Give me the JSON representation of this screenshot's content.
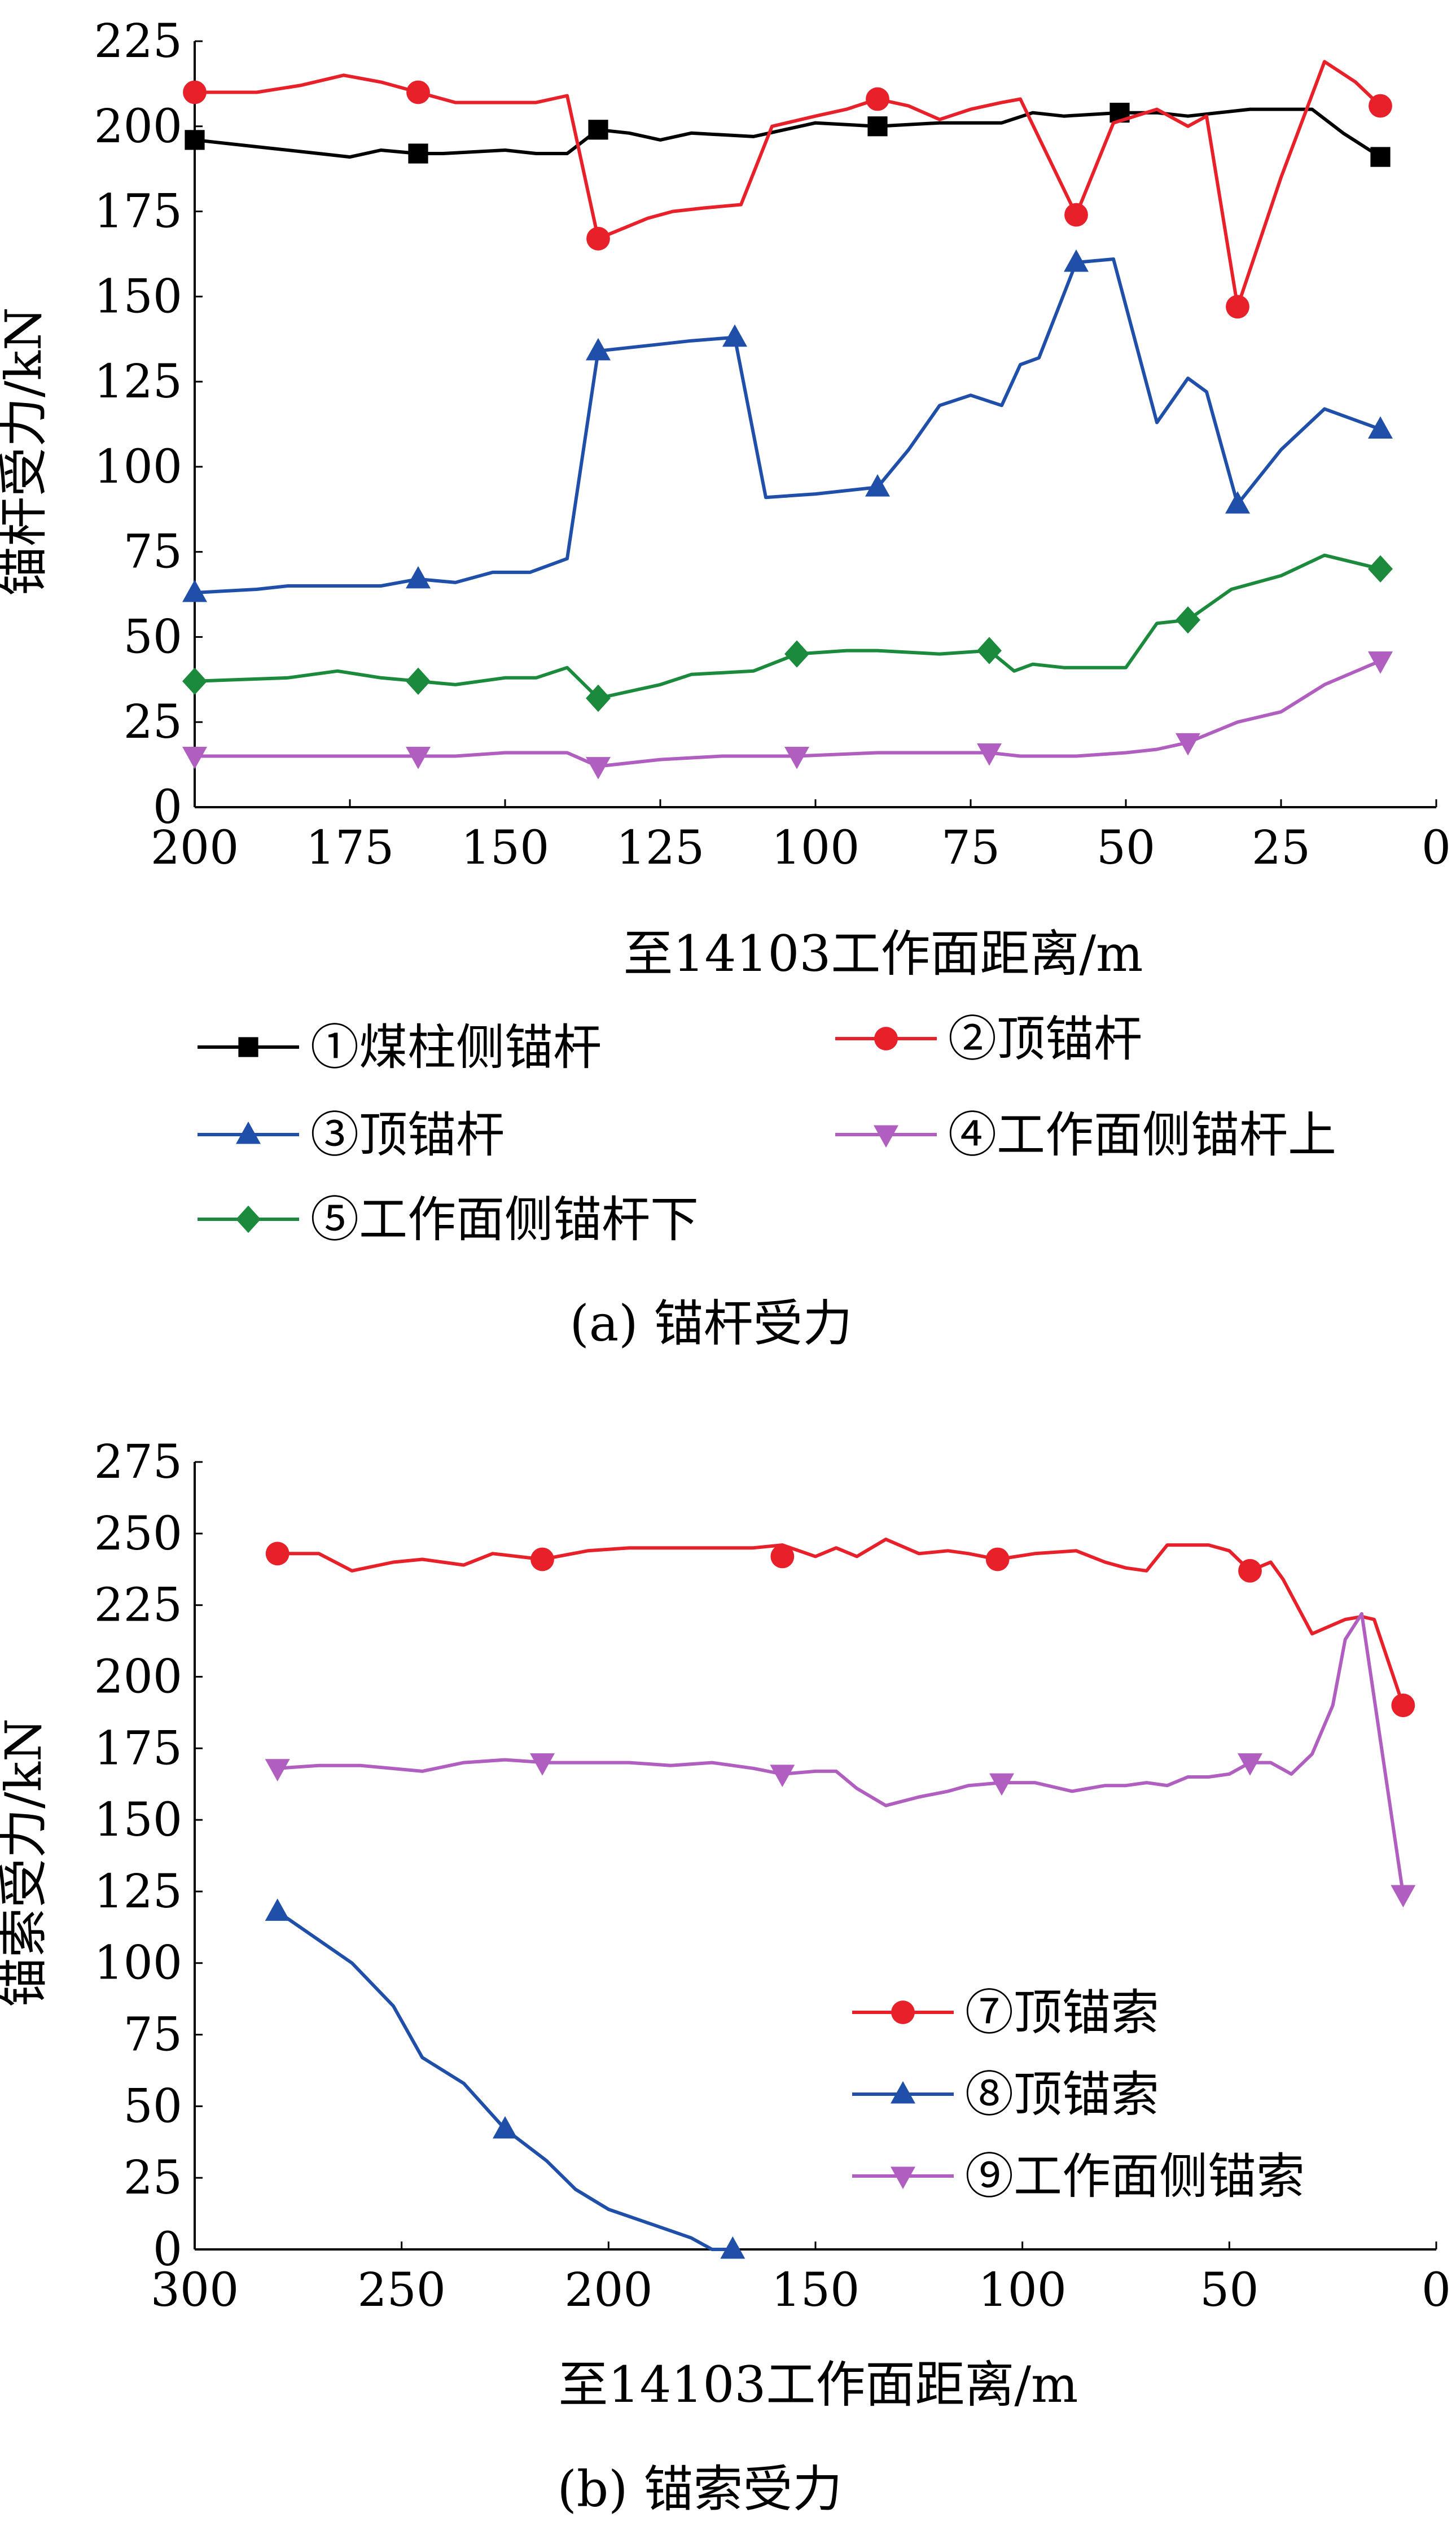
{
  "colors": {
    "s1": "#000000",
    "s2": "#e8202a",
    "s3": "#1f4fa8",
    "s4": "#b05fc0",
    "s5": "#1c8a3c",
    "s7": "#e8202a",
    "s8": "#1f4fa8",
    "s9": "#b05fc0"
  },
  "chart_data": [
    {
      "type": "line",
      "caption": "(a)  锚杆受力",
      "xlabel": "至14103工作面距离/m",
      "ylabel": "锚杆受力/kN",
      "xlim": [
        200,
        0
      ],
      "ylim": [
        0,
        225
      ],
      "x_ticks": [
        "200",
        "175",
        "150",
        "125",
        "100",
        "75",
        "50",
        "25",
        "0"
      ],
      "y_ticks": [
        "0",
        "25",
        "50",
        "75",
        "100",
        "125",
        "150",
        "175",
        "200",
        "225"
      ],
      "legend_position": "bottom",
      "series": [
        {
          "name": "①煤柱侧锚杆",
          "marker": "square",
          "color": "#000000",
          "x": [
            200,
            190,
            180,
            175,
            170,
            164,
            160,
            150,
            145,
            140,
            135,
            130,
            125,
            120,
            110,
            100,
            90,
            80,
            70,
            65,
            60,
            51,
            45,
            40,
            30,
            20,
            15,
            9
          ],
          "y": [
            196,
            194,
            192,
            191,
            193,
            192,
            192,
            193,
            192,
            192,
            199,
            198,
            196,
            198,
            197,
            201,
            200,
            201,
            201,
            204,
            203,
            204,
            204,
            203,
            205,
            205,
            198,
            191
          ],
          "marker_x": [
            200,
            164,
            135,
            90,
            51,
            9
          ],
          "marker_y": [
            196,
            192,
            199,
            200,
            204,
            191
          ]
        },
        {
          "name": "②顶锚杆",
          "marker": "circle",
          "color": "#e8202a",
          "x": [
            200,
            190,
            183,
            176,
            170,
            164,
            158,
            150,
            145,
            140,
            135,
            127,
            123,
            118,
            112,
            107,
            100,
            95,
            90,
            85,
            80,
            75,
            70,
            67,
            58,
            52,
            45,
            40,
            37,
            32,
            25,
            18,
            13,
            9
          ],
          "y": [
            210,
            210,
            212,
            215,
            213,
            210,
            207,
            207,
            207,
            209,
            167,
            173,
            175,
            176,
            177,
            200,
            203,
            205,
            208,
            206,
            202,
            205,
            207,
            208,
            174,
            201,
            205,
            200,
            203,
            147,
            185,
            219,
            213,
            206
          ],
          "marker_x": [
            200,
            164,
            135,
            90,
            58,
            32,
            9
          ],
          "marker_y": [
            210,
            210,
            167,
            208,
            174,
            147,
            206
          ]
        },
        {
          "name": "③顶锚杆",
          "marker": "triangle-up",
          "color": "#1f4fa8",
          "x": [
            200,
            190,
            185,
            170,
            164,
            158,
            152,
            146,
            140,
            135,
            125,
            120,
            113,
            108,
            100,
            90,
            85,
            80,
            75,
            70,
            67,
            64,
            58,
            52,
            45,
            40,
            37,
            32,
            25,
            18,
            9
          ],
          "y": [
            63,
            64,
            65,
            65,
            67,
            66,
            69,
            69,
            73,
            134,
            136,
            137,
            138,
            91,
            92,
            94,
            105,
            118,
            121,
            118,
            130,
            132,
            160,
            161,
            113,
            126,
            122,
            89,
            105,
            117,
            111
          ],
          "marker_x": [
            200,
            164,
            135,
            113,
            90,
            58,
            32,
            9
          ],
          "marker_y": [
            63,
            67,
            134,
            138,
            94,
            160,
            89,
            111
          ]
        },
        {
          "name": "④工作面侧锚杆上",
          "marker": "triangle-down",
          "color": "#b05fc0",
          "x": [
            200,
            190,
            180,
            170,
            164,
            158,
            150,
            140,
            135,
            125,
            115,
            103,
            90,
            80,
            72,
            67,
            58,
            50,
            45,
            40,
            32,
            25,
            18,
            9
          ],
          "y": [
            15,
            15,
            15,
            15,
            15,
            15,
            16,
            16,
            12,
            14,
            15,
            15,
            16,
            16,
            16,
            15,
            15,
            16,
            17,
            19,
            25,
            28,
            36,
            43
          ],
          "marker_x": [
            200,
            164,
            135,
            103,
            72,
            40,
            9
          ],
          "marker_y": [
            15,
            15,
            12,
            15,
            16,
            19,
            43
          ]
        },
        {
          "name": "⑤工作面侧锚杆下",
          "marker": "diamond",
          "color": "#1c8a3c",
          "x": [
            200,
            185,
            177,
            170,
            164,
            158,
            150,
            145,
            140,
            135,
            125,
            120,
            110,
            103,
            95,
            90,
            80,
            72,
            68,
            65,
            60,
            50,
            45,
            40,
            33,
            25,
            18,
            9
          ],
          "y": [
            37,
            38,
            40,
            38,
            37,
            36,
            38,
            38,
            41,
            32,
            36,
            39,
            40,
            45,
            46,
            46,
            45,
            46,
            40,
            42,
            41,
            41,
            54,
            55,
            64,
            68,
            74,
            70
          ],
          "marker_x": [
            200,
            164,
            135,
            103,
            72,
            40,
            9
          ],
          "marker_y": [
            37,
            37,
            32,
            45,
            46,
            55,
            70
          ]
        }
      ],
      "legend": [
        {
          "label": "①煤柱侧锚杆"
        },
        {
          "label": "②顶锚杆"
        },
        {
          "label": "③顶锚杆"
        },
        {
          "label": "④工作面侧锚杆上"
        },
        {
          "label": "⑤工作面侧锚杆下"
        }
      ]
    },
    {
      "type": "line",
      "caption": "(b)  锚索受力",
      "xlabel": "至14103工作面距离/m",
      "ylabel": "锚索受力/kN",
      "xlim": [
        300,
        0
      ],
      "ylim": [
        0,
        275
      ],
      "x_ticks": [
        "300",
        "250",
        "200",
        "150",
        "100",
        "50",
        "0"
      ],
      "y_ticks": [
        "0",
        "25",
        "50",
        "75",
        "100",
        "125",
        "150",
        "175",
        "200",
        "225",
        "250",
        "275"
      ],
      "legend_position": "bottom-right",
      "series": [
        {
          "name": "⑦顶锚索",
          "marker": "circle",
          "color": "#e8202a",
          "x": [
            280,
            270,
            262,
            252,
            245,
            235,
            228,
            216,
            205,
            195,
            185,
            175,
            165,
            158,
            150,
            145,
            140,
            133,
            125,
            118,
            113,
            106,
            97,
            87,
            80,
            75,
            70,
            65,
            60,
            55,
            50,
            45,
            40,
            37,
            30,
            22,
            18,
            15,
            8
          ],
          "y": [
            243,
            243,
            237,
            240,
            241,
            239,
            243,
            241,
            244,
            245,
            245,
            245,
            245,
            246,
            242,
            245,
            242,
            248,
            243,
            244,
            243,
            241,
            243,
            244,
            240,
            238,
            237,
            246,
            246,
            246,
            244,
            237,
            240,
            234,
            215,
            220,
            221,
            220,
            190
          ],
          "marker_x": [
            280,
            216,
            158,
            106,
            45,
            8
          ],
          "marker_y": [
            243,
            241,
            242,
            241,
            237,
            190
          ]
        },
        {
          "name": "⑧顶锚索",
          "marker": "triangle-up",
          "color": "#1f4fa8",
          "x": [
            280,
            270,
            262,
            252,
            245,
            235,
            225,
            215,
            208,
            200,
            190,
            180,
            175,
            170
          ],
          "y": [
            118,
            108,
            100,
            85,
            67,
            58,
            42,
            31,
            21,
            14,
            9,
            4,
            0,
            0
          ],
          "marker_x": [
            280,
            225,
            170
          ],
          "marker_y": [
            118,
            42,
            0
          ]
        },
        {
          "name": "⑨工作面侧锚索",
          "marker": "triangle-down",
          "color": "#b05fc0",
          "x": [
            280,
            270,
            260,
            245,
            235,
            225,
            215,
            205,
            195,
            185,
            175,
            165,
            158,
            150,
            145,
            140,
            133,
            125,
            118,
            113,
            105,
            97,
            88,
            80,
            75,
            70,
            65,
            60,
            55,
            50,
            45,
            40,
            35,
            30,
            25,
            22,
            18,
            8
          ],
          "y": [
            168,
            169,
            169,
            167,
            170,
            171,
            170,
            170,
            170,
            169,
            170,
            168,
            166,
            167,
            167,
            161,
            155,
            158,
            160,
            162,
            163,
            163,
            160,
            162,
            162,
            163,
            162,
            165,
            165,
            166,
            170,
            170,
            166,
            173,
            190,
            213,
            222,
            124
          ],
          "marker_x": [
            280,
            216,
            158,
            105,
            45,
            8
          ],
          "marker_y": [
            168,
            170,
            166,
            163,
            170,
            124
          ]
        }
      ],
      "legend": [
        {
          "label": "⑦顶锚索"
        },
        {
          "label": "⑧顶锚索"
        },
        {
          "label": "⑨工作面侧锚索"
        }
      ]
    }
  ]
}
